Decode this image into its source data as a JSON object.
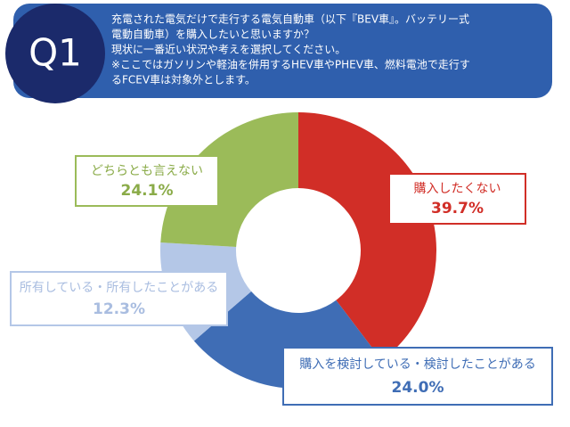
{
  "chart_data": {
    "type": "donut",
    "badge": "Q1",
    "title_lines": [
      "充電された電気だけで走行する電気自動車（以下『BEV車』。バッテリー式",
      "電動自動車）を購入したいと思いますか？",
      "現状に一番近い状況や考えを選択してください。",
      "※ここではガソリンや軽油を併用するHEV車やPHEV車、燃料電池で走行す",
      "るFCEV車は対象外とします。"
    ],
    "categories": [
      "購入したくない",
      "購入を検討している・検討したことがある",
      "所有している・所有したことがある",
      "どちらとも言えない"
    ],
    "values": [
      39.7,
      24.0,
      12.3,
      24.1
    ],
    "value_labels": [
      "39.7%",
      "24.0%",
      "12.3%",
      "24.1%"
    ],
    "colors": [
      "#d12e27",
      "#3f6db5",
      "#b4c7e7",
      "#9bbb59"
    ]
  }
}
